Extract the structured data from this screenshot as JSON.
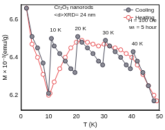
{
  "chart_data": {
    "type": "scatter",
    "x_label": "T (K)",
    "y_label": "M × 10⁻³(emu/g)",
    "annotations": [
      "Cr₂O₃ nanorods",
      "<d>XRD= 24 nm",
      "H = 100 Oe",
      "wₜ = 5 hour",
      "10 K",
      "20 K",
      "30 K",
      "40 K"
    ],
    "series": [
      {
        "name": "Cooling",
        "color": "#8c8c96",
        "marker": "circle",
        "line_style": "solid",
        "x": [
          2,
          4,
          6,
          8,
          10,
          11,
          12,
          14,
          16,
          18,
          19.5,
          20.5,
          22,
          24,
          26,
          28,
          29.5,
          30.5,
          32,
          34,
          36,
          38,
          39.5,
          40.5,
          42,
          44,
          46,
          48
        ],
        "values": [
          6.66,
          6.51,
          6.45,
          6.37,
          6.21,
          6.5,
          6.46,
          6.42,
          6.38,
          6.34,
          6.32,
          6.51,
          6.48,
          6.45,
          6.42,
          6.38,
          6.36,
          6.49,
          6.46,
          6.43,
          6.4,
          6.36,
          6.34,
          6.43,
          6.38,
          6.32,
          6.25,
          6.17
        ]
      },
      {
        "name": "Heating",
        "color": "#e8474a",
        "marker": "circle",
        "line_style": "solid",
        "x": [
          2,
          4,
          6,
          8,
          10,
          10.5,
          12,
          14,
          16,
          18,
          20,
          22,
          24,
          26,
          28,
          30,
          32,
          34,
          36,
          38,
          40,
          42,
          44,
          46,
          48,
          49
        ],
        "values": [
          6.66,
          6.47,
          6.4,
          6.31,
          6.2,
          6.21,
          6.27,
          6.34,
          6.4,
          6.45,
          6.48,
          6.49,
          6.48,
          6.47,
          6.46,
          6.47,
          6.46,
          6.45,
          6.44,
          6.42,
          6.4,
          6.36,
          6.31,
          6.25,
          6.2,
          6.17
        ]
      }
    ],
    "xlim": [
      0,
      50
    ],
    "xticks": [
      0,
      10,
      20,
      30,
      40,
      50
    ],
    "ylim": [
      6.12,
      6.68
    ],
    "yticks": [
      6.2,
      6.4,
      6.6
    ],
    "grid": false,
    "legend": "top right"
  }
}
